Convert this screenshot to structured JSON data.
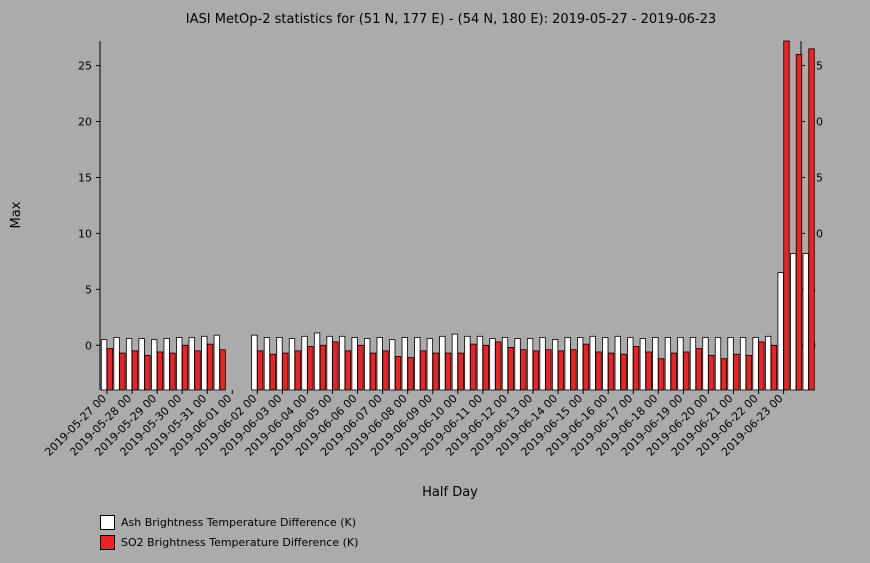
{
  "chart_data": {
    "type": "bar",
    "title": "IASI MetOp-2 statistics for (51 N, 177 E) - (54 N, 180 E): 2019-05-27 - 2019-06-23",
    "xlabel": "Half Day",
    "ylabel": "Max",
    "ylim": [
      -4,
      27.2
    ],
    "yticks": [
      0,
      5,
      10,
      15,
      20,
      25
    ],
    "x_tick_labels": [
      "2019-05-27 00",
      "2019-05-28 00",
      "2019-05-29 00",
      "2019-05-30 00",
      "2019-05-31 00",
      "2019-06-01 00",
      "2019-06-02 00",
      "2019-06-03 00",
      "2019-06-04 00",
      "2019-06-05 00",
      "2019-06-06 00",
      "2019-06-07 00",
      "2019-06-08 00",
      "2019-06-09 00",
      "2019-06-10 00",
      "2019-06-11 00",
      "2019-06-12 00",
      "2019-06-13 00",
      "2019-06-14 00",
      "2019-06-15 00",
      "2019-06-16 00",
      "2019-06-17 00",
      "2019-06-18 00",
      "2019-06-19 00",
      "2019-06-20 00",
      "2019-06-21 00",
      "2019-06-22 00",
      "2019-06-23 00"
    ],
    "series": [
      {
        "name": "Ash Brightness Temperature Difference (K)",
        "color": "#ffffff",
        "values": [
          0.5,
          0.7,
          0.6,
          0.6,
          0.5,
          0.6,
          0.7,
          0.7,
          0.8,
          0.9,
          null,
          null,
          0.9,
          0.7,
          0.7,
          0.6,
          0.8,
          1.1,
          0.8,
          0.8,
          0.7,
          0.6,
          0.7,
          0.5,
          0.7,
          0.7,
          0.6,
          0.8,
          1.0,
          0.8,
          0.8,
          0.6,
          0.7,
          0.6,
          0.6,
          0.7,
          0.5,
          0.7,
          0.7,
          0.8,
          0.7,
          0.8,
          0.7,
          0.6,
          0.7,
          0.7,
          0.7,
          0.7,
          0.7,
          0.7,
          0.7,
          0.7,
          0.7,
          0.8,
          6.5,
          8.2,
          8.2
        ]
      },
      {
        "name": "SO2 Brightness Temperature Difference (K)",
        "color": "#ee2222",
        "values": [
          -0.3,
          -0.7,
          -0.5,
          -0.9,
          -0.6,
          -0.7,
          0.0,
          -0.5,
          0.1,
          -0.4,
          null,
          null,
          -0.5,
          -0.8,
          -0.7,
          -0.5,
          -0.1,
          0.0,
          0.3,
          -0.5,
          0.0,
          -0.7,
          -0.5,
          -1.0,
          -1.1,
          -0.5,
          -0.7,
          -0.7,
          -0.7,
          0.1,
          0.0,
          0.3,
          -0.2,
          -0.4,
          -0.5,
          -0.4,
          -0.5,
          -0.4,
          0.1,
          -0.6,
          -0.7,
          -0.8,
          -0.1,
          -0.6,
          -1.2,
          -0.7,
          -0.6,
          -0.3,
          -0.9,
          -1.2,
          -0.8,
          -0.9,
          0.3,
          0.0,
          27.2,
          26.0,
          26.5
        ]
      }
    ],
    "legend_position": "bottom-left",
    "grid": false
  }
}
